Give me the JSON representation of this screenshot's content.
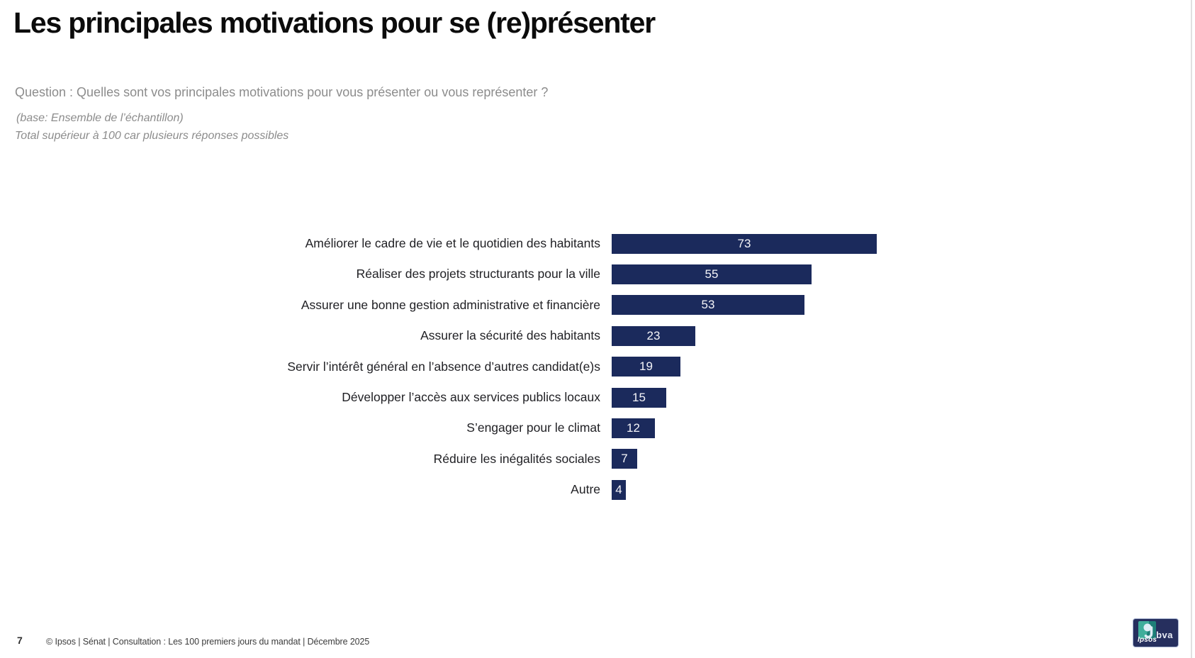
{
  "title": "Les principales motivations pour se (re)présenter",
  "subtitle": {
    "question": "Question : Quelles sont vos principales motivations pour vous présenter ou vous représenter ?",
    "base": "(base: Ensemble de l’échantillon)",
    "note": "Total supérieur à 100 car plusieurs réponses possibles"
  },
  "chart_data": {
    "type": "bar",
    "orientation": "horizontal",
    "categories": [
      "Améliorer le cadre de vie et le quotidien des habitants",
      "Réaliser des projets structurants pour la ville",
      "Assurer une bonne gestion administrative et financière",
      "Assurer la sécurité des habitants",
      "Servir l’intérêt général en l’absence d’autres candidat(e)s",
      "Développer l’accès aux services publics locaux",
      "S’engager pour le climat",
      "Réduire les inégalités sociales",
      "Autre"
    ],
    "values": [
      73,
      55,
      53,
      23,
      19,
      15,
      12,
      7,
      4
    ],
    "xlim": [
      0,
      75
    ],
    "bar_color": "#1b2a5c",
    "value_label_color": "#f4f4f8",
    "value_labels_inside": true,
    "grid": false,
    "legend": false
  },
  "footer": {
    "page_number": "7",
    "copyright": "© Ipsos | Sénat | Consultation : Les 100 premiers jours du mandat | Décembre 2025",
    "logo": {
      "ipsos": "Ipsos",
      "bva": "bva"
    }
  },
  "colors": {
    "bar": "#1b2a5c",
    "title_text": "#0b0b0b",
    "subtitle_gray": "#8c8c8c",
    "label_text": "#1f1f23",
    "logo_background": "#262f5e",
    "logo_teal": "#3fae9b"
  }
}
